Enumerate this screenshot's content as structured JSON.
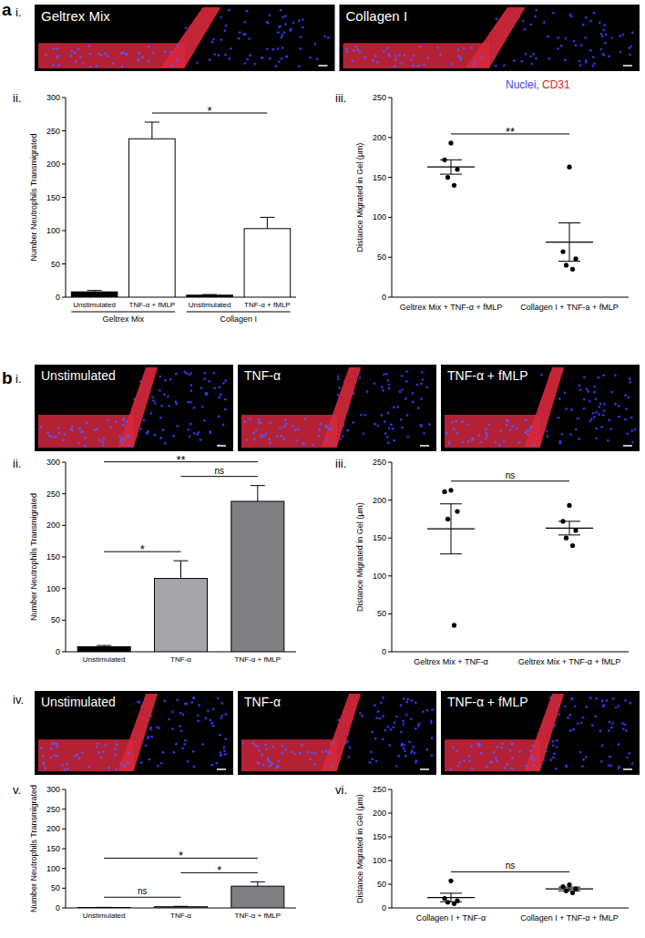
{
  "panel_labels": [
    "a",
    "b"
  ],
  "subpanel_labels": {
    "a": [
      "i.",
      "ii.",
      "iii."
    ],
    "b": [
      "i.",
      "ii.",
      "iii.",
      "iv.",
      "v.",
      "vi."
    ]
  },
  "image_rows": [
    {
      "labels": [
        "Geltrex Mix",
        "Collagen I"
      ]
    },
    {
      "labels": [
        "Unstimulated",
        "TNF-α",
        "TNF-α + fMLP"
      ]
    },
    {
      "labels": [
        "Unstimulated",
        "TNF-α",
        "TNF-α + fMLP"
      ]
    }
  ],
  "stain_legend": [
    {
      "text": "Nuclei, ",
      "color": "#3d3dff"
    },
    {
      "text": "CD31",
      "color": "#e0202a"
    }
  ],
  "chart_data": [
    {
      "type": "bar",
      "y_label": "Number Neutrophils Transmigrated",
      "categories": [
        "Unstimulated",
        "TNF-α + fMLP",
        "Unstimulated",
        "TNF-α + fMLP"
      ],
      "values": [
        8,
        238,
        3,
        103
      ],
      "errors": [
        2,
        25,
        1,
        17
      ],
      "colors": [
        "#000000",
        "#ffffff",
        "#000000",
        "#ffffff"
      ],
      "groups": [
        {
          "label": "Geltrex Mix",
          "from": 0,
          "to": 1
        },
        {
          "label": "Collagen I",
          "from": 2,
          "to": 3
        }
      ],
      "ylim": [
        0,
        300
      ],
      "yticks": [
        0,
        50,
        100,
        150,
        200,
        250,
        300
      ],
      "annotations": [
        {
          "from": 1,
          "to": 3,
          "text": "*"
        }
      ]
    },
    {
      "type": "scatter",
      "y_label": "Distance Migrated in Gel (μm)",
      "categories": [
        "Geltrex Mix + TNF-α + fMLP",
        "Collagen I + TNF-a + fMLP"
      ],
      "points": [
        [
          193,
          172,
          160,
          150,
          140
        ],
        [
          163,
          57,
          48,
          40,
          35
        ]
      ],
      "means": [
        163,
        69
      ],
      "errors": [
        9,
        24
      ],
      "color": "#000000",
      "ylim": [
        0,
        250
      ],
      "yticks": [
        0,
        50,
        100,
        150,
        200,
        250
      ],
      "annotations": [
        {
          "from": 0,
          "to": 1,
          "text": "**"
        }
      ]
    },
    {
      "type": "bar",
      "y_label": "Number Neutrophils Transmigrated",
      "categories": [
        "Unstimulated",
        "TNF-α",
        "TNF-α + fMLP"
      ],
      "values": [
        8,
        116,
        238
      ],
      "errors": [
        2,
        28,
        25
      ],
      "colors": [
        "#000000",
        "#a6a6a8",
        "#808082"
      ],
      "ylim": [
        0,
        300
      ],
      "yticks": [
        0,
        50,
        100,
        150,
        200,
        250,
        300
      ],
      "annotations": [
        {
          "from": 0,
          "to": 1,
          "text": "*"
        },
        {
          "from": 1,
          "to": 2,
          "text": "ns"
        },
        {
          "from": 0,
          "to": 2,
          "text": "**"
        }
      ]
    },
    {
      "type": "scatter",
      "y_label": "Distance Migrated in Gel (μm)",
      "categories": [
        "Geltrex Mix + TNF-α",
        "Geltrex Mix + TNF-α + fMLP"
      ],
      "points": [
        [
          213,
          211,
          185,
          175,
          35
        ],
        [
          193,
          172,
          160,
          150,
          140
        ]
      ],
      "means": [
        162,
        163
      ],
      "errors": [
        33,
        9
      ],
      "color": "#000000",
      "ylim": [
        0,
        250
      ],
      "yticks": [
        0,
        50,
        100,
        150,
        200,
        250
      ],
      "annotations": [
        {
          "from": 0,
          "to": 1,
          "text": "ns"
        }
      ]
    },
    {
      "type": "bar",
      "y_label": "Number Neutrophils Transmigrated",
      "categories": [
        "Unstimulated",
        "TNF-α",
        "TNF-α + fMLP"
      ],
      "values": [
        1,
        3,
        55
      ],
      "errors": [
        0.5,
        1,
        11
      ],
      "colors": [
        "#000000",
        "#a6a6a8",
        "#808082"
      ],
      "ylim": [
        0,
        300
      ],
      "yticks": [
        0,
        50,
        100,
        150,
        200,
        250,
        300
      ],
      "annotations": [
        {
          "from": 0,
          "to": 1,
          "text": "ns"
        },
        {
          "from": 1,
          "to": 2,
          "text": "*"
        },
        {
          "from": 0,
          "to": 2,
          "text": "*"
        }
      ]
    },
    {
      "type": "scatter",
      "y_label": "Distance Migrated in Gel (μm)",
      "categories": [
        "Collagen I + TNF-α",
        "Collagen I + TNF-α + fMLP"
      ],
      "points": [
        [
          57,
          20,
          15,
          12,
          9
        ],
        [
          49,
          45,
          40,
          36,
          32
        ]
      ],
      "means": [
        22,
        40
      ],
      "errors": [
        9,
        4
      ],
      "color": "#000000",
      "ylim": [
        0,
        250
      ],
      "yticks": [
        0,
        50,
        100,
        150,
        200,
        250
      ],
      "annotations": [
        {
          "from": 0,
          "to": 1,
          "text": "ns"
        }
      ]
    }
  ]
}
